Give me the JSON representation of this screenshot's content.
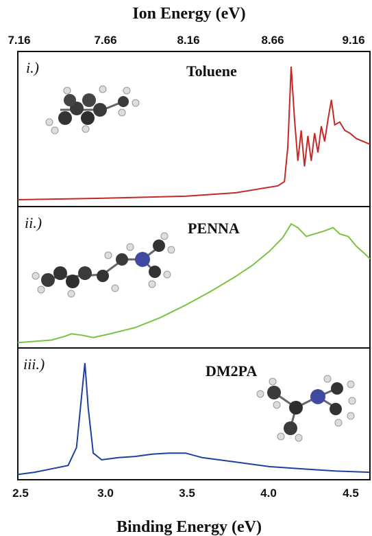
{
  "chart_data": {
    "type": "line",
    "top_axis": {
      "label": "Ion Energy (eV)",
      "ticks": [
        "7.16",
        "7.66",
        "8.16",
        "8.66",
        "9.16"
      ]
    },
    "bottom_axis": {
      "label": "Binding Energy (eV)",
      "ticks": [
        "2.5",
        "3.0",
        "3.5",
        "4.0",
        "4.5"
      ]
    },
    "xlim": [
      2.5,
      4.6
    ],
    "panels": [
      {
        "label": "i.)",
        "name": "Toluene",
        "color": "#c62828",
        "molecule_icon": "toluene-molecule",
        "ylim": [
          0,
          1.0
        ],
        "x": [
          2.5,
          3.0,
          3.5,
          3.8,
          3.95,
          4.05,
          4.09,
          4.11,
          4.13,
          4.15,
          4.17,
          4.19,
          4.21,
          4.23,
          4.25,
          4.27,
          4.29,
          4.31,
          4.33,
          4.35,
          4.37,
          4.39,
          4.42,
          4.45,
          4.48,
          4.52,
          4.56,
          4.6
        ],
        "y": [
          0.02,
          0.03,
          0.045,
          0.07,
          0.1,
          0.12,
          0.15,
          0.4,
          0.98,
          0.6,
          0.3,
          0.52,
          0.26,
          0.48,
          0.3,
          0.5,
          0.36,
          0.55,
          0.44,
          0.6,
          0.74,
          0.56,
          0.58,
          0.52,
          0.5,
          0.46,
          0.44,
          0.42
        ]
      },
      {
        "label": "ii.)",
        "name": "PENNA",
        "color": "#7cc242",
        "molecule_icon": "penna-molecule",
        "ylim": [
          0,
          1.0
        ],
        "x": [
          2.5,
          2.6,
          2.7,
          2.78,
          2.82,
          2.88,
          2.95,
          3.05,
          3.2,
          3.35,
          3.5,
          3.65,
          3.8,
          3.9,
          4.0,
          4.08,
          4.13,
          4.17,
          4.22,
          4.27,
          4.32,
          4.38,
          4.42,
          4.47,
          4.52,
          4.57,
          4.6
        ],
        "y": [
          0.01,
          0.02,
          0.03,
          0.06,
          0.08,
          0.07,
          0.05,
          0.08,
          0.13,
          0.21,
          0.31,
          0.42,
          0.54,
          0.63,
          0.74,
          0.85,
          0.96,
          0.93,
          0.86,
          0.88,
          0.9,
          0.93,
          0.88,
          0.86,
          0.78,
          0.72,
          0.68
        ]
      },
      {
        "label": "iii.)",
        "name": "DM2PA",
        "color": "#1e3fa0",
        "molecule_icon": "dm2pa-molecule",
        "ylim": [
          0,
          1.0
        ],
        "x": [
          2.5,
          2.6,
          2.7,
          2.8,
          2.85,
          2.88,
          2.9,
          2.92,
          2.95,
          3.0,
          3.1,
          3.2,
          3.3,
          3.4,
          3.5,
          3.6,
          3.8,
          4.0,
          4.2,
          4.4,
          4.6
        ],
        "y": [
          0.01,
          0.03,
          0.06,
          0.09,
          0.25,
          0.7,
          1.0,
          0.6,
          0.2,
          0.14,
          0.16,
          0.17,
          0.19,
          0.2,
          0.2,
          0.16,
          0.12,
          0.08,
          0.06,
          0.04,
          0.03
        ]
      }
    ]
  }
}
